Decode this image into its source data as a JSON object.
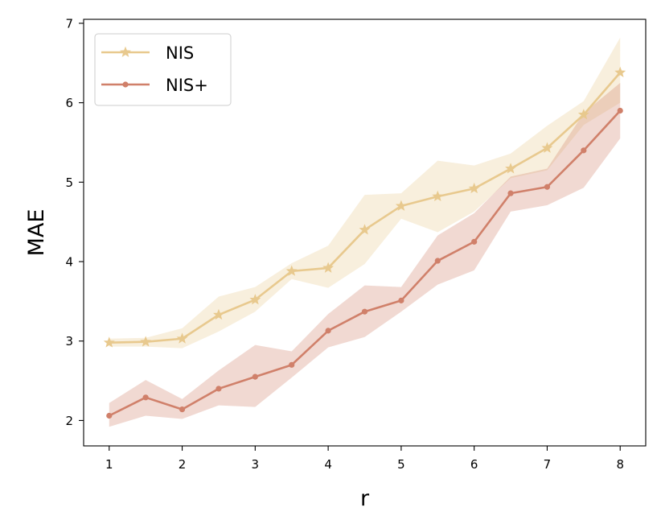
{
  "chart_data": {
    "type": "line",
    "title": "",
    "xlabel": "r",
    "ylabel": "MAE",
    "xlim": [
      0.65,
      8.35
    ],
    "ylim": [
      1.68,
      7.05
    ],
    "xticks": [
      1,
      2,
      3,
      4,
      5,
      6,
      7,
      8
    ],
    "yticks": [
      2,
      3,
      4,
      5,
      6,
      7
    ],
    "grid": false,
    "legend_position": "top-left",
    "x": [
      1,
      1.5,
      2,
      2.5,
      3,
      3.5,
      4,
      4.5,
      5,
      5.5,
      6,
      6.5,
      7,
      7.5,
      8
    ],
    "series": [
      {
        "name": "NIS",
        "color": "#e8c98e",
        "marker": "star",
        "values": [
          2.98,
          2.99,
          3.03,
          3.33,
          3.52,
          3.88,
          3.92,
          4.4,
          4.7,
          4.82,
          4.92,
          5.17,
          5.43,
          5.85,
          6.38
        ],
        "lower": [
          2.93,
          2.93,
          2.91,
          3.12,
          3.37,
          3.78,
          3.67,
          3.97,
          4.54,
          4.37,
          4.63,
          5.05,
          5.15,
          5.72,
          6.0
        ],
        "upper": [
          3.03,
          3.04,
          3.16,
          3.56,
          3.68,
          3.98,
          4.2,
          4.84,
          4.86,
          5.27,
          5.21,
          5.36,
          5.71,
          6.02,
          6.82
        ]
      },
      {
        "name": "NIS+",
        "color": "#d0806a",
        "marker": "circle",
        "values": [
          2.06,
          2.29,
          2.14,
          2.4,
          2.55,
          2.7,
          3.13,
          3.37,
          3.51,
          4.01,
          4.25,
          4.86,
          4.94,
          5.4,
          5.9
        ],
        "lower": [
          1.92,
          2.06,
          2.02,
          2.19,
          2.17,
          2.54,
          2.92,
          3.05,
          3.37,
          3.71,
          3.89,
          4.63,
          4.71,
          4.93,
          5.55
        ],
        "upper": [
          2.22,
          2.51,
          2.27,
          2.63,
          2.95,
          2.87,
          3.34,
          3.7,
          3.68,
          4.33,
          4.61,
          5.07,
          5.17,
          5.87,
          6.25
        ]
      }
    ]
  }
}
